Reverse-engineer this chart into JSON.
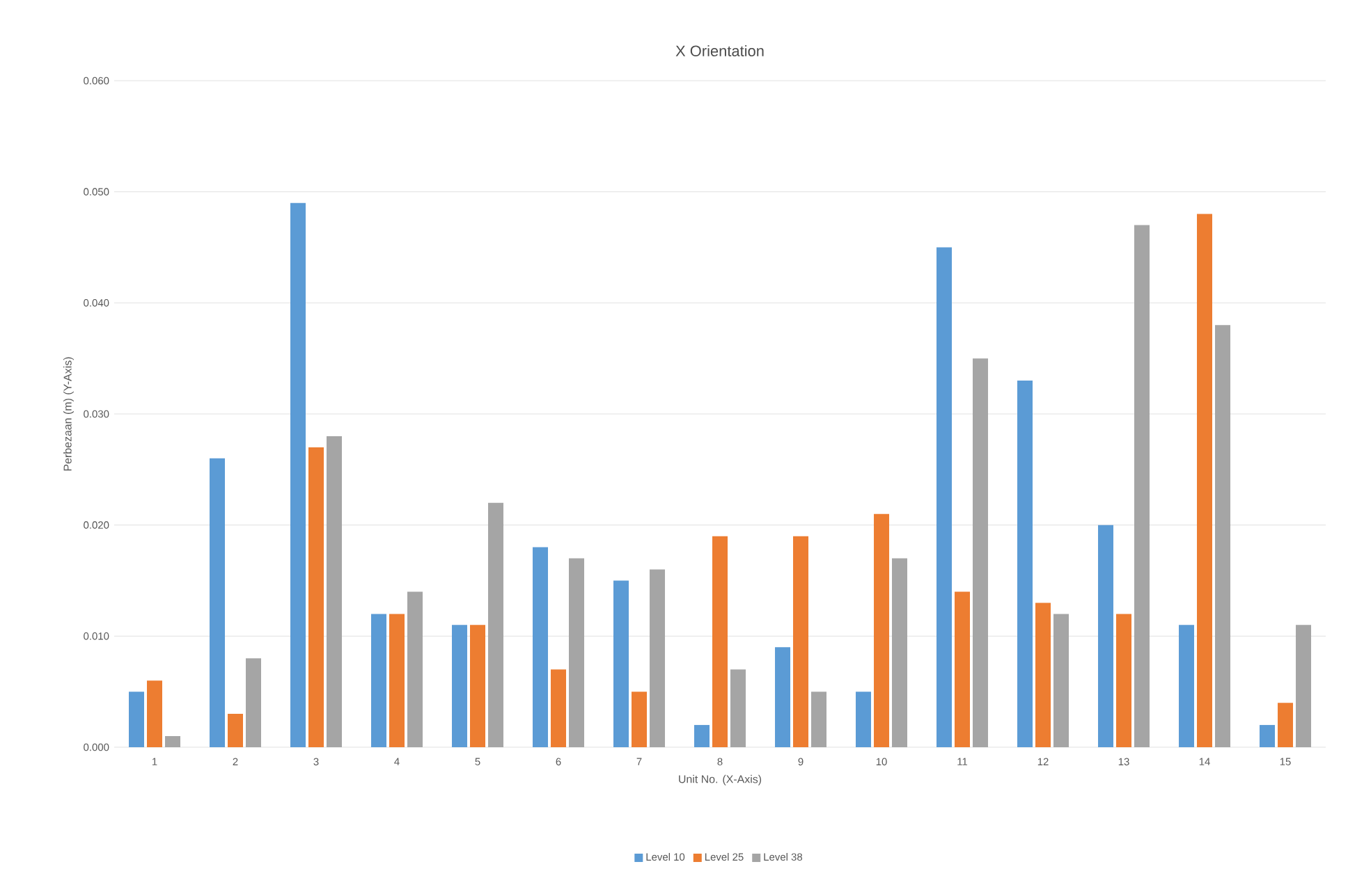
{
  "chart_data": {
    "type": "bar",
    "title": "X Orientation",
    "xlabel": "Unit No. (X-Axis)",
    "ylabel": "Perbezaan (m) (Y-Axis)",
    "categories": [
      "1",
      "2",
      "3",
      "4",
      "5",
      "6",
      "7",
      "8",
      "9",
      "10",
      "11",
      "12",
      "13",
      "14",
      "15"
    ],
    "series": [
      {
        "name": "Level 10",
        "color": "#5b9bd5",
        "values": [
          0.005,
          0.026,
          0.049,
          0.012,
          0.011,
          0.018,
          0.015,
          0.002,
          0.009,
          0.005,
          0.045,
          0.033,
          0.02,
          0.011,
          0.002
        ]
      },
      {
        "name": "Level 25",
        "color": "#ed7d31",
        "values": [
          0.006,
          0.003,
          0.027,
          0.012,
          0.011,
          0.007,
          0.005,
          0.019,
          0.019,
          0.021,
          0.014,
          0.013,
          0.012,
          0.048,
          0.004
        ]
      },
      {
        "name": "Level 38",
        "color": "#a5a5a5",
        "values": [
          0.001,
          0.008,
          0.028,
          0.014,
          0.022,
          0.017,
          0.016,
          0.007,
          0.005,
          0.017,
          0.035,
          0.012,
          0.047,
          0.038,
          0.011
        ]
      }
    ],
    "ylim": [
      0,
      0.06
    ],
    "yticks": [
      {
        "value": 0,
        "label": "0.000"
      },
      {
        "value": 0.01,
        "label": "0.010"
      },
      {
        "value": 0.02,
        "label": "0.020"
      },
      {
        "value": 0.03,
        "label": "0.030"
      },
      {
        "value": 0.04,
        "label": "0.040"
      },
      {
        "value": 0.05,
        "label": "0.050"
      },
      {
        "value": 0.06,
        "label": "0.060"
      }
    ],
    "grid": "y",
    "legend": "bottom"
  }
}
